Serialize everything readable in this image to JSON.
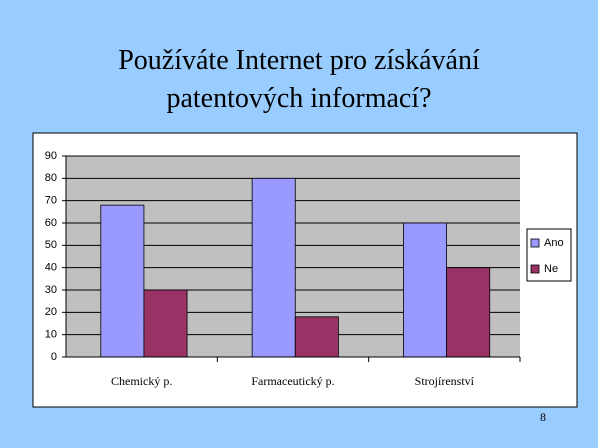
{
  "chart_data": {
    "type": "bar",
    "title": "Používáte Internet pro získávání patentových informací?",
    "categories": [
      "Chemický p.",
      "Farmaceutický p.",
      "Strojírenství"
    ],
    "series": [
      {
        "name": "Ano",
        "color": "#9999ff",
        "values": [
          68,
          80,
          60
        ]
      },
      {
        "name": "Ne",
        "color": "#993366",
        "values": [
          30,
          18,
          40
        ]
      }
    ],
    "ylim": [
      0,
      90
    ],
    "yticks": [
      0,
      10,
      20,
      30,
      40,
      50,
      60,
      70,
      80,
      90
    ],
    "grid": true,
    "legend": "right"
  },
  "slide_number": 8
}
